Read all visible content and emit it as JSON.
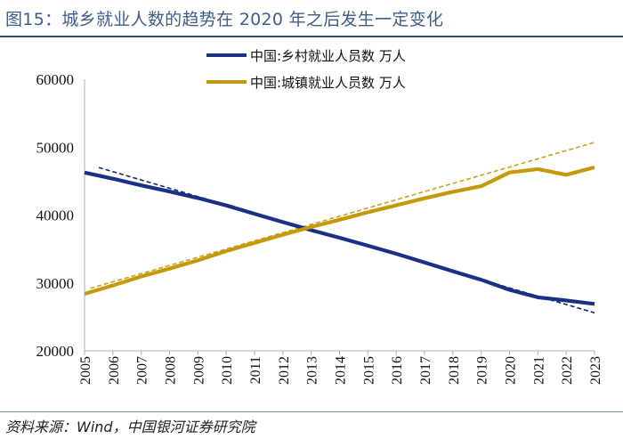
{
  "title": "图15：城乡就业人数的趋势在 2020 年之后发生一定变化",
  "source": "资料来源：Wind，中国银河证券研究院",
  "colors": {
    "rural": "#1a2f86",
    "urban": "#c49a0c",
    "rural_trend": "#16286e",
    "urban_trend": "#c9a21c",
    "axis": "#b0b0b0"
  },
  "chart_data": {
    "type": "line",
    "title": "",
    "xlabel": "",
    "ylabel": "",
    "x": [
      "2005",
      "2006",
      "2007",
      "2008",
      "2009",
      "2010",
      "2011",
      "2012",
      "2013",
      "2014",
      "2015",
      "2016",
      "2017",
      "2018",
      "2019",
      "2020",
      "2021",
      "2022",
      "2023"
    ],
    "ylim": [
      20000,
      60000
    ],
    "yticks": [
      20000,
      30000,
      40000,
      50000,
      60000
    ],
    "grid": false,
    "legend_position": "top-right",
    "series": [
      {
        "name": "中国:乡村就业人员数 万人",
        "key": "rural",
        "values": [
          46260,
          45350,
          44370,
          43460,
          42510,
          41420,
          40190,
          38970,
          37770,
          36650,
          35490,
          34290,
          33020,
          31720,
          30470,
          28990,
          27880,
          27420,
          26910
        ]
      },
      {
        "name": "中国:城镇就业人员数 万人",
        "key": "urban",
        "values": [
          28390,
          29630,
          30950,
          32100,
          33320,
          34690,
          35910,
          37100,
          38240,
          39310,
          40410,
          41430,
          42460,
          43420,
          44250,
          46270,
          46770,
          45930,
          47030
        ]
      }
    ],
    "trendlines": [
      {
        "key": "rural_trend",
        "style": "dashed",
        "from": {
          "x": 2005.5,
          "y": 47000
        },
        "to": {
          "x": 2023,
          "y": 25600
        }
      },
      {
        "key": "urban_trend",
        "style": "dashed",
        "from": {
          "x": 2005.2,
          "y": 29200
        },
        "to": {
          "x": 2023,
          "y": 50700
        }
      }
    ]
  }
}
